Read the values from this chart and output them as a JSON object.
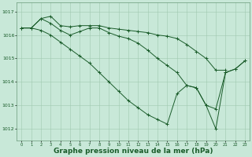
{
  "background_color": "#c8e8d8",
  "grid_color": "#a0c8b0",
  "line_color": "#1a5c2a",
  "marker_color": "#1a5c2a",
  "xlabel": "Graphe pression niveau de la mer (hPa)",
  "xlabel_fontsize": 6.5,
  "xlabel_fontweight": "bold",
  "ylim": [
    1011.5,
    1017.4
  ],
  "xlim": [
    -0.5,
    23.5
  ],
  "yticks": [
    1012,
    1013,
    1014,
    1015,
    1016,
    1017
  ],
  "xticks": [
    0,
    1,
    2,
    3,
    4,
    5,
    6,
    7,
    8,
    9,
    10,
    11,
    12,
    13,
    14,
    15,
    16,
    17,
    18,
    19,
    20,
    21,
    22,
    23
  ],
  "line1_x": [
    0,
    1,
    2,
    3,
    4,
    5,
    6,
    7,
    8,
    9,
    10,
    11,
    12,
    13,
    14,
    15,
    16,
    17,
    18,
    19,
    20,
    21
  ],
  "line1_y": [
    1016.3,
    1016.3,
    1016.7,
    1016.8,
    1016.4,
    1016.35,
    1016.4,
    1016.4,
    1016.4,
    1016.3,
    1016.25,
    1016.2,
    1016.15,
    1016.1,
    1016.0,
    1015.95,
    1015.85,
    1015.6,
    1015.3,
    1015.0,
    1014.5,
    1014.5
  ],
  "line2_x": [
    0,
    1,
    2,
    3,
    4,
    5,
    6,
    7,
    8,
    9,
    10,
    11,
    12,
    13,
    14,
    15,
    16,
    17,
    18,
    19,
    20,
    21,
    22,
    23
  ],
  "line2_y": [
    1016.3,
    1016.3,
    1016.7,
    1016.5,
    1016.2,
    1016.0,
    1016.15,
    1016.3,
    1016.3,
    1016.1,
    1015.95,
    1015.85,
    1015.65,
    1015.35,
    1015.0,
    1014.7,
    1014.4,
    1013.85,
    1013.75,
    1013.0,
    1012.85,
    1014.4,
    1014.55,
    1014.9
  ],
  "line3_x": [
    0,
    1,
    2,
    3,
    4,
    5,
    6,
    7,
    8,
    9,
    10,
    11,
    12,
    13,
    14,
    15,
    16,
    17,
    18,
    19,
    20,
    21,
    22,
    23
  ],
  "line3_y": [
    1016.3,
    1016.3,
    1016.2,
    1016.0,
    1015.7,
    1015.4,
    1015.1,
    1014.8,
    1014.4,
    1014.0,
    1013.6,
    1013.2,
    1012.9,
    1012.6,
    1012.4,
    1012.2,
    1013.5,
    1013.85,
    1013.75,
    1013.0,
    1012.0,
    1014.4,
    1014.55,
    1014.9
  ]
}
